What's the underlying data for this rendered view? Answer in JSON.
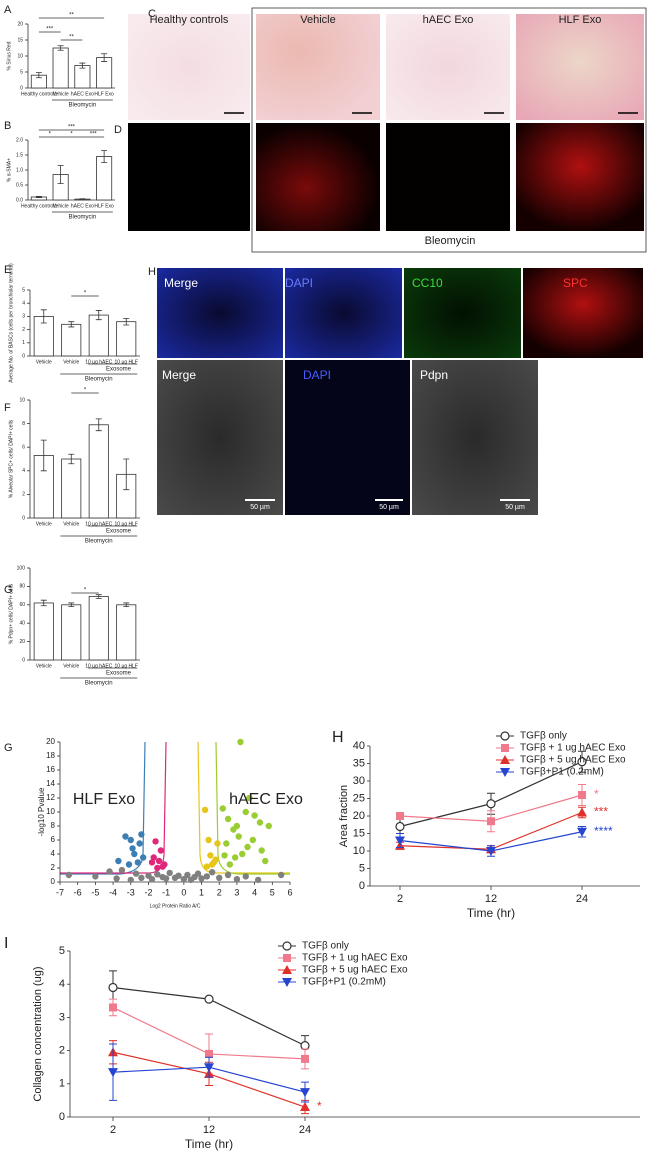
{
  "chart_data": [
    {
      "type": "bar",
      "panel": "A",
      "ylabel": "% Sirius Red",
      "categories": [
        "Healthy controls",
        "Vehicle",
        "hAEC Exo",
        "HLF Exo"
      ],
      "values": [
        4,
        12.5,
        7,
        9.5
      ],
      "errors": [
        0.8,
        0.7,
        0.8,
        1.2
      ],
      "color": "#ffffff",
      "ylim": [
        0,
        20
      ],
      "yticks": [
        0,
        5,
        10,
        15,
        20
      ],
      "group_label": "Bleomycin",
      "annotations": [
        "**",
        "***",
        "**"
      ]
    },
    {
      "type": "bar",
      "panel": "B",
      "ylabel": "% α-SMA+",
      "categories": [
        "Healthy controls",
        "Vehicle",
        "hAEC Exo",
        "HLF Exo"
      ],
      "values": [
        0.1,
        0.85,
        0.03,
        1.45
      ],
      "errors": [
        0.02,
        0.3,
        0.01,
        0.2
      ],
      "color": "#ffffff",
      "ylim": [
        0,
        2
      ],
      "yticks": [
        {
          "value": 0,
          "label": "0.0"
        },
        0.5,
        {
          "value": 1,
          "label": "1.0"
        },
        1.5,
        {
          "value": 2,
          "label": "2.0"
        }
      ],
      "group_label": "Bleomycin",
      "annotations": [
        "***",
        "*",
        "*",
        "***"
      ]
    },
    {
      "type": "bar",
      "panel": "E",
      "ylabel": "Average No. of BASCs (cells per bronchiolar terminal)",
      "categories": [
        "Vehicle",
        "Vehicle",
        "10 µg hAEC",
        "10 µg HLF"
      ],
      "values": [
        3,
        2.4,
        3.1,
        2.6
      ],
      "errors": [
        0.5,
        0.2,
        0.35,
        0.25
      ],
      "color": "#ffffff",
      "ylim": [
        0,
        5
      ],
      "yticks": [
        0,
        1,
        2,
        3,
        4,
        5
      ],
      "exosome_label": "Exosome",
      "group_label": "Bleomycin",
      "annotations": [
        "*"
      ]
    },
    {
      "type": "bar",
      "panel": "F",
      "ylabel": "% Alveolar SPC+ cells/ DAPI+ cells",
      "categories": [
        "Vehicle",
        "Vehicle",
        "10 µg hAEC",
        "10 µg HLF"
      ],
      "values": [
        5.3,
        5,
        7.9,
        3.7
      ],
      "errors": [
        1.3,
        0.4,
        0.5,
        1.3
      ],
      "color": "#ffffff",
      "ylim": [
        0,
        10
      ],
      "yticks": [
        0,
        2,
        4,
        6,
        8,
        10
      ],
      "exosome_label": "Exosome",
      "group_label": "Bleomycin",
      "annotations": [
        "*"
      ]
    },
    {
      "type": "bar",
      "panel": "G",
      "ylabel": "% Pdpn+ cells/ DAPI+ cells",
      "categories": [
        "Vehicle",
        "Vehicle",
        "10 µg hAEC",
        "10 µg HLF"
      ],
      "values": [
        62,
        60,
        69,
        60
      ],
      "errors": [
        3,
        2,
        2,
        2
      ],
      "color": "#ffffff",
      "ylim": [
        0,
        100
      ],
      "yticks": [
        0,
        20,
        40,
        60,
        80,
        100
      ],
      "exosome_label": "Exosome",
      "group_label": "Bleomycin",
      "annotations": [
        "*"
      ]
    },
    {
      "type": "scatter",
      "panel": "G",
      "left_label": "HLF Exo",
      "right_label": "hAEC Exo",
      "xlabel": "Log2 Protein Ratio A/C",
      "ylabel": "-log10 Pvalue",
      "xlim": [
        -7,
        6
      ],
      "ylim": [
        0,
        20
      ],
      "xticks": [
        -7,
        -6,
        -5,
        -4,
        -3,
        -2,
        -1,
        0,
        1,
        2,
        3,
        4,
        5,
        6
      ],
      "yticks": [
        0,
        2,
        4,
        6,
        8,
        10,
        12,
        14,
        16,
        18,
        20
      ],
      "series": [
        {
          "color": "#808080",
          "x": [
            -6.5,
            -5,
            -4.2,
            -3.8,
            -3.5,
            -3,
            -2.7,
            -2.4,
            -2,
            -1.8,
            -1.5,
            -1.2,
            -1,
            -0.8,
            -0.5,
            -0.3,
            0,
            0.2,
            0.4,
            0.6,
            0.8,
            1,
            1.3,
            1.6,
            2,
            2.5,
            3,
            3.5,
            4.2,
            5.5
          ],
          "y": [
            1,
            0.8,
            1.5,
            0.5,
            1.7,
            0.3,
            1.2,
            0.6,
            0.9,
            0.4,
            1.1,
            0.7,
            0.5,
            1.3,
            0.6,
            0.9,
            0.4,
            1,
            0.3,
            0.7,
            1.2,
            0.5,
            0.8,
            1.4,
            0.6,
            1,
            0.4,
            0.8,
            0.3,
            1
          ]
        },
        {
          "color": "#3d7fb5",
          "x": [
            -3.3,
            -3,
            -2.8,
            -2.5,
            -3.7,
            -2.3,
            -3.1,
            -2.6,
            -2.9,
            -2.4
          ],
          "y": [
            6.5,
            6,
            4,
            5.5,
            3,
            3.5,
            2.5,
            2.8,
            4.8,
            6.8
          ]
        },
        {
          "color": "#e0287a",
          "x": [
            -1.6,
            -1.4,
            -1.2,
            -1.8,
            -1.3,
            -1.5,
            -1.7,
            -1.1
          ],
          "y": [
            5.8,
            3,
            2.2,
            2.8,
            4.5,
            2,
            3.5,
            2.5
          ]
        },
        {
          "color": "#e6c619",
          "x": [
            1.2,
            1.4,
            1.6,
            1.8,
            1.3,
            1.7,
            1.5,
            1.9
          ],
          "y": [
            10.3,
            6,
            2.5,
            3.2,
            2.2,
            2.8,
            3.8,
            5.5
          ]
        },
        {
          "color": "#9acd32",
          "x": [
            2.2,
            2.5,
            2.8,
            3,
            3.2,
            3.5,
            3.7,
            4,
            4.3,
            4.6,
            2.4,
            2.9,
            3.3,
            3.9,
            4.4,
            2.6,
            3.1,
            3.6,
            4.8,
            2.3
          ],
          "y": [
            10.5,
            9,
            7.5,
            8,
            20,
            10,
            12,
            9.5,
            8.5,
            3,
            5.5,
            3.5,
            4,
            6,
            4.5,
            2.5,
            6.5,
            5,
            8,
            3.8
          ]
        }
      ]
    },
    {
      "type": "line",
      "panel": "H",
      "xlabel": "Time (hr)",
      "ylabel": "Area fraction",
      "categories": [
        "2",
        "12",
        "24"
      ],
      "ylim": [
        0,
        40
      ],
      "yticks": [
        0,
        5,
        10,
        15,
        20,
        25,
        30,
        35,
        40
      ],
      "series": [
        {
          "name": "TGFβ only",
          "color": "#333333",
          "marker": "circle-open",
          "values": [
            17,
            23.5,
            35.5
          ],
          "errors": [
            2,
            3,
            3
          ]
        },
        {
          "name": "TGFβ + 1 ug hAEC Exo",
          "color": "#f07a8c",
          "marker": "square",
          "values": [
            20,
            18.5,
            26
          ],
          "errors": [
            1,
            3,
            3
          ],
          "annotation": "*"
        },
        {
          "name": "TGFβ + 5 ug hAEC Exo",
          "color": "#e0302a",
          "marker": "triangle-up",
          "values": [
            11.5,
            10.5,
            21
          ],
          "errors": [
            1,
            1,
            1.5
          ],
          "annotation": "***"
        },
        {
          "name": "TGFβ+P1 (0.2mM)",
          "color": "#2545d0",
          "marker": "triangle-down",
          "values": [
            13,
            10,
            15.5
          ],
          "errors": [
            2,
            1.5,
            1.5
          ],
          "annotation": "****"
        }
      ]
    },
    {
      "type": "line",
      "panel": "I",
      "xlabel": "Time (hr)",
      "ylabel": "Collagen concentration (ug)",
      "categories": [
        "2",
        "12",
        "24"
      ],
      "ylim": [
        0,
        5
      ],
      "yticks": [
        0,
        1,
        2,
        3,
        4,
        5
      ],
      "series": [
        {
          "name": "TGFβ only",
          "color": "#333333",
          "marker": "circle-open",
          "values": [
            3.9,
            3.55,
            2.15
          ],
          "errors": [
            0.5,
            0.05,
            0.3
          ]
        },
        {
          "name": "TGFβ + 1 ug hAEC Exo",
          "color": "#f07a8c",
          "marker": "square",
          "values": [
            3.3,
            1.9,
            1.75
          ],
          "errors": [
            0.25,
            0.6,
            0.3
          ]
        },
        {
          "name": "TGFβ + 5 ug hAEC Exo",
          "color": "#e0302a",
          "marker": "triangle-up",
          "values": [
            1.95,
            1.3,
            0.3
          ],
          "errors": [
            0.35,
            0.35,
            0.2
          ],
          "annotation": "*"
        },
        {
          "name": "TGFβ+P1 (0.2mM)",
          "color": "#2545d0",
          "marker": "triangle-down",
          "values": [
            1.35,
            1.5,
            0.75
          ],
          "errors": [
            0.85,
            0.3,
            0.3
          ]
        }
      ]
    }
  ],
  "images": {
    "panel_C": "C",
    "panel_D": "D",
    "c_columns": [
      "Healthy controls",
      "Vehicle",
      "hAEC Exo",
      "HLF Exo"
    ],
    "bleomycin": "Bleomycin",
    "panel_H": "H",
    "h_top": [
      "Merge",
      "DAPI",
      "CC10",
      "SPC"
    ],
    "h_bottom": [
      "Merge",
      "DAPI",
      "Pdpn"
    ],
    "scale_bar": "50 µm"
  }
}
